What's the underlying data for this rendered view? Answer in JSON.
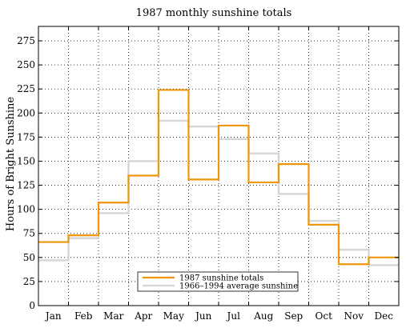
{
  "chart_data": {
    "type": "line",
    "step": true,
    "title": "1987 monthly sunshine totals",
    "xlabel": "",
    "ylabel": "Hours of Bright Sunshine",
    "categories": [
      "Jan",
      "Feb",
      "Mar",
      "Apr",
      "May",
      "Jun",
      "Jul",
      "Aug",
      "Sep",
      "Oct",
      "Nov",
      "Dec"
    ],
    "ylim": [
      0,
      290
    ],
    "yticks": [
      0,
      25,
      50,
      75,
      100,
      125,
      150,
      175,
      200,
      225,
      250,
      275
    ],
    "grid": true,
    "legend_position": "bottom-center",
    "series": [
      {
        "name": "1987 sunshine totals",
        "color": "#f0960a",
        "values": [
          66,
          73,
          107,
          135,
          224,
          131,
          187,
          128,
          147,
          84,
          43,
          50
        ]
      },
      {
        "name": "1966–1994 average sunshine",
        "color": "#d6d6d6",
        "values": [
          47,
          70,
          96,
          150,
          192,
          186,
          173,
          158,
          116,
          88,
          58,
          42
        ]
      }
    ]
  }
}
